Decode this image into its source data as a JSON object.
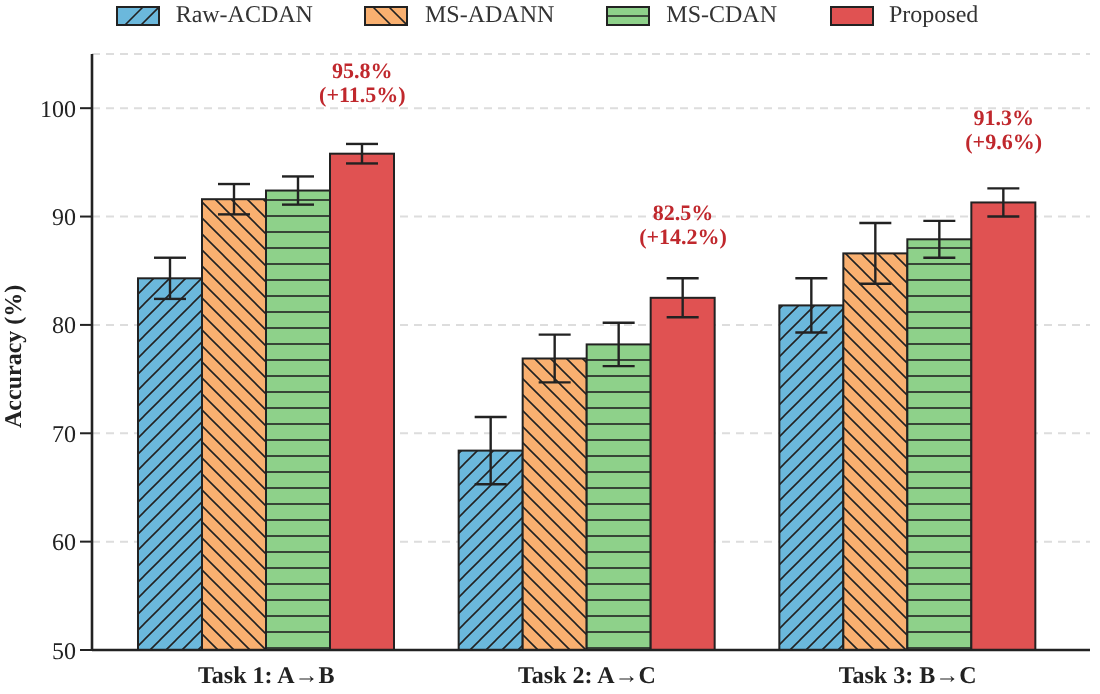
{
  "chart_data": {
    "type": "bar",
    "ylabel": "Accuracy (%)",
    "categories": [
      "Task 1: A→B",
      "Task 2: A→C",
      "Task 3: B→C"
    ],
    "series": [
      {
        "name": "Raw-ACDAN",
        "color": "#6bb8dc",
        "values": [
          84.3,
          68.4,
          81.8
        ],
        "errors": [
          1.9,
          3.1,
          2.5
        ]
      },
      {
        "name": "MS-ADANN",
        "color": "#f9b070",
        "values": [
          91.6,
          76.9,
          86.6
        ],
        "errors": [
          1.4,
          2.2,
          2.8
        ]
      },
      {
        "name": "MS-CDAN",
        "color": "#8ed18a",
        "values": [
          92.4,
          78.2,
          87.9
        ],
        "errors": [
          1.3,
          2.0,
          1.7
        ]
      },
      {
        "name": "Proposed",
        "color": "#e05252",
        "values": [
          95.8,
          82.5,
          91.3
        ],
        "errors": [
          0.9,
          1.8,
          1.3
        ]
      }
    ],
    "ylim": [
      50,
      105
    ],
    "yticks": [
      50,
      60,
      70,
      80,
      90,
      100
    ],
    "grid": "y",
    "legend": "top",
    "annotations": [
      "95.8%\n(+11.5%)",
      "82.5%\n(+14.2%)",
      "91.3%\n(+9.6%)"
    ]
  }
}
